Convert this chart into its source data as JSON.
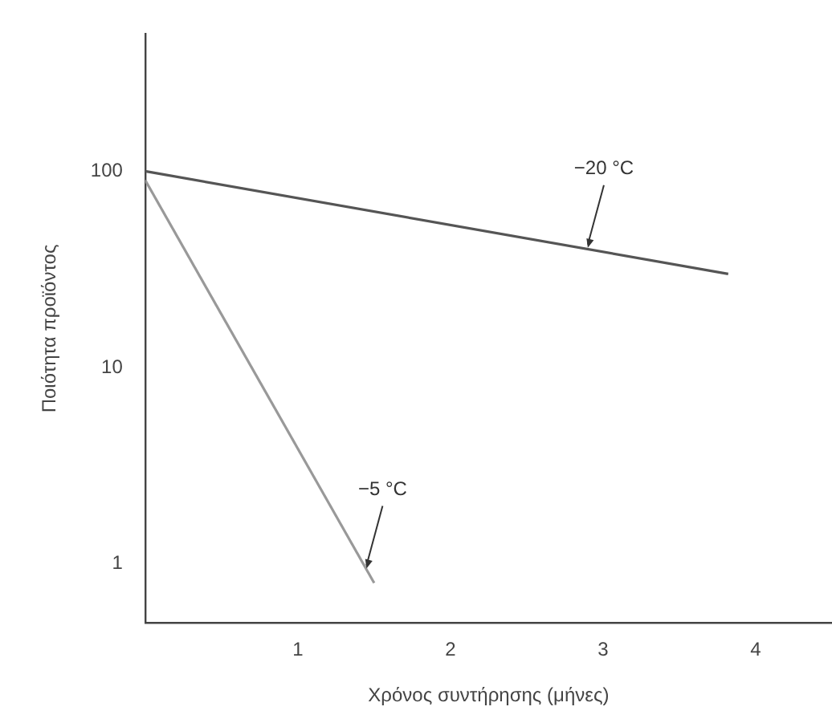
{
  "chart_data": {
    "type": "line",
    "xlabel": "Χρόνος συντήρησης (μήνες)",
    "ylabel": "Ποιότητα προϊόντος",
    "series": [
      {
        "color": "#555555",
        "x": [
          0,
          3.82
        ],
        "values": [
          100,
          30
        ]
      },
      {
        "color": "#999999",
        "x": [
          0,
          1.5
        ],
        "values": [
          90,
          0.8
        ]
      }
    ],
    "xlim": [
      0,
      4.5
    ],
    "xticks": [
      1,
      2,
      3,
      4
    ],
    "ylim": [
      0.5,
      500
    ],
    "yticks": [
      1,
      10,
      100
    ],
    "log": "y",
    "grid": false,
    "legend": false,
    "marker": "none",
    "line_style": "solid",
    "annotations": [
      {
        "text": "−20 °C",
        "x": 2.9,
        "y": 40
      },
      {
        "text": "−5 °C",
        "x": 1.45,
        "y": 0.93
      }
    ]
  }
}
